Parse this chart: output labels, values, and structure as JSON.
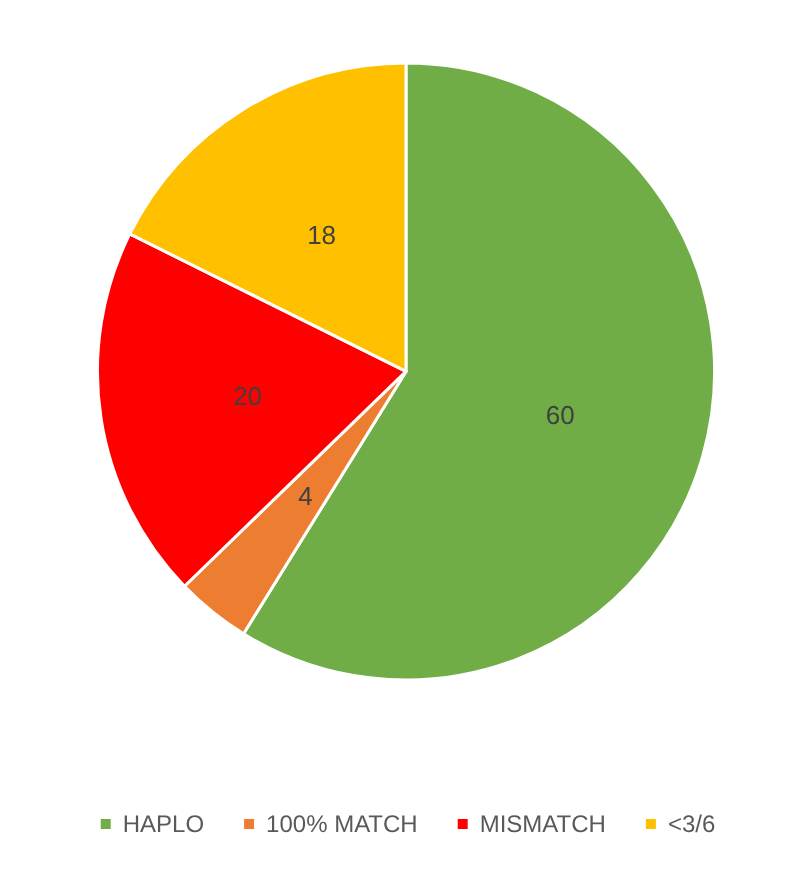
{
  "chart_data": {
    "type": "pie",
    "categories": [
      "HAPLO",
      "100% MATCH",
      "MISMATCH",
      "<3/6"
    ],
    "values": [
      60,
      4,
      20,
      18
    ],
    "colors": [
      "#70ad47",
      "#ed7d31",
      "#ff0000",
      "#ffc000"
    ],
    "data_labels": true,
    "legend": "bottom"
  }
}
